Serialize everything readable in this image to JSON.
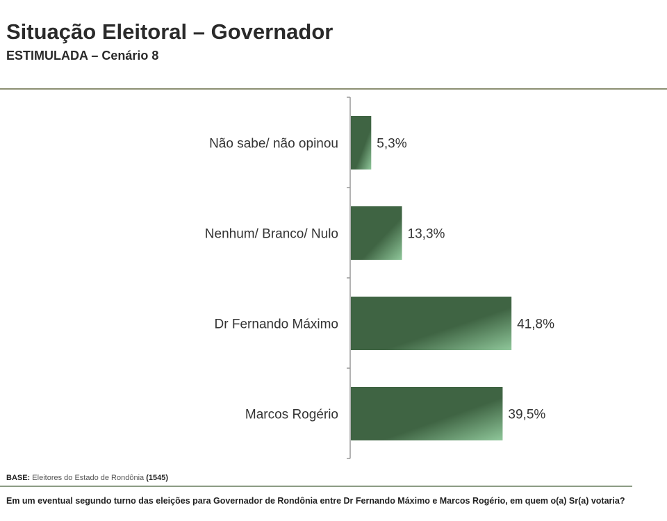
{
  "header": {
    "title": "Situação Eleitoral – Governador",
    "subtitle": "ESTIMULADA – Cenário 8"
  },
  "chart_data": {
    "type": "bar",
    "orientation": "horizontal",
    "categories": [
      "Não sabe/ não opinou",
      "Nenhum/ Branco/ Nulo",
      "Dr Fernando Máximo",
      "Marcos Rogério"
    ],
    "values": [
      5.3,
      13.3,
      41.8,
      39.5
    ],
    "labels": [
      "5,3%",
      "13,3%",
      "41,8%",
      "39,5%"
    ],
    "unit": "%",
    "bar_color": "#3f6443",
    "bar_highlight": "#8fc79a"
  },
  "footer": {
    "base_label": "BASE:",
    "base_text": "Eleitores do Estado de Rondônia",
    "base_count": "(1545)",
    "question": "Em um eventual segundo turno das eleições para Governador de Rondônia entre Dr Fernando Máximo e Marcos Rogério, em quem o(a) Sr(a) votaria?"
  }
}
